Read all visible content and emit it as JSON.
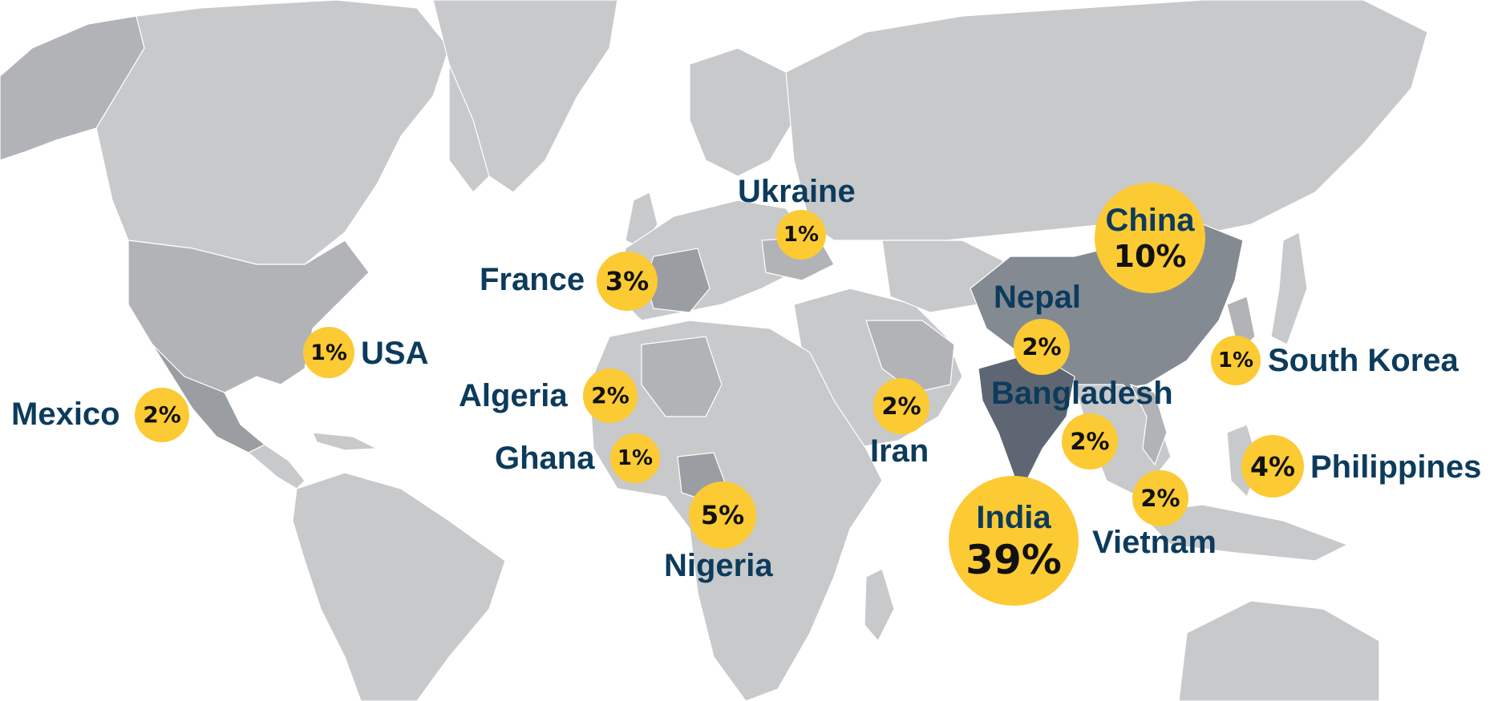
{
  "colors": {
    "bubble": "#fcca33",
    "label": "#0c3b5c",
    "land": "#c8c9cb",
    "land_shade_1": "#b1b3b6",
    "land_shade_2": "#9a9ea3",
    "land_shade_3": "#848a92",
    "land_shade_4": "#5d6672",
    "ocean": "#ffffff"
  },
  "countries": [
    {
      "name": "Mexico",
      "value": "2%"
    },
    {
      "name": "USA",
      "value": "1%"
    },
    {
      "name": "France",
      "value": "3%"
    },
    {
      "name": "Algeria",
      "value": "2%"
    },
    {
      "name": "Ghana",
      "value": "1%"
    },
    {
      "name": "Nigeria",
      "value": "5%"
    },
    {
      "name": "Ukraine",
      "value": "1%"
    },
    {
      "name": "Iran",
      "value": "2%"
    },
    {
      "name": "Nepal",
      "value": "2%"
    },
    {
      "name": "Bangladesh",
      "value": "2%"
    },
    {
      "name": "India",
      "value": "39%"
    },
    {
      "name": "China",
      "value": "10%"
    },
    {
      "name": "Vietnam",
      "value": "2%"
    },
    {
      "name": "South Korea",
      "value": "1%"
    },
    {
      "name": "Philippines",
      "value": "4%"
    }
  ]
}
